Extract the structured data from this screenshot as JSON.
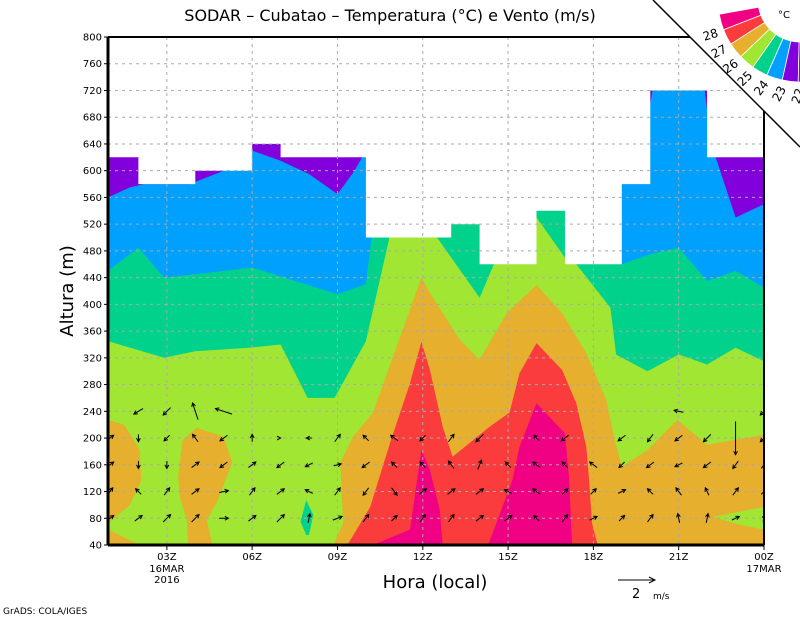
{
  "chart_data": {
    "type": "contour",
    "title": "SODAR – Cubatao – Temperatura (°C) e Vento (m/s)",
    "xlabel": "Hora (local)",
    "ylabel": "Altura (m)",
    "xlim_hours": [
      0.93,
      24
    ],
    "ylim": [
      40,
      800
    ],
    "yticks": [
      40,
      80,
      120,
      160,
      200,
      240,
      280,
      320,
      360,
      400,
      440,
      480,
      520,
      560,
      600,
      640,
      680,
      720,
      760,
      800
    ],
    "xticks": [
      {
        "h": 3,
        "label": "03Z",
        "sub1": "16MAR",
        "sub2": "2016"
      },
      {
        "h": 6,
        "label": "06Z"
      },
      {
        "h": 9,
        "label": "09Z"
      },
      {
        "h": 12,
        "label": "12Z"
      },
      {
        "h": 15,
        "label": "15Z"
      },
      {
        "h": 18,
        "label": "18Z"
      },
      {
        "h": 21,
        "label": "21Z"
      },
      {
        "h": 24,
        "label": "00Z",
        "sub1": "17MAR"
      }
    ],
    "grid": true,
    "colors": {
      "lt22": "#a000c8",
      "c22_23": "#8200dc",
      "c23_24": "#00a0ff",
      "c24_25": "#00d28c",
      "c25_26": "#a0e632",
      "c26_27": "#e6af2d",
      "c27_28": "#fa3c3c",
      "gt28": "#f00082"
    },
    "colorbar": {
      "unit": "°C",
      "levels": [
        "28",
        "27",
        "26",
        "25",
        "24",
        "23",
        "22"
      ],
      "colors": [
        "#f00082",
        "#fa3c3c",
        "#e6af2d",
        "#a0e632",
        "#00d28c",
        "#00a0ff",
        "#8200dc",
        "#a000c8"
      ]
    },
    "data_top": [
      [
        0.93,
        2,
        620
      ],
      [
        2,
        4,
        580
      ],
      [
        4,
        6,
        600
      ],
      [
        6,
        7,
        640
      ],
      [
        7,
        10,
        620
      ],
      [
        10,
        13,
        500
      ],
      [
        13,
        14,
        520
      ],
      [
        14,
        16,
        460
      ],
      [
        16,
        17,
        540
      ],
      [
        17,
        19,
        460
      ],
      [
        19,
        20,
        580
      ],
      [
        20,
        22,
        720
      ],
      [
        22,
        24,
        620
      ]
    ],
    "iso23_top": [
      [
        0.93,
        560
      ],
      [
        1.7,
        575
      ],
      [
        2.2,
        580
      ],
      [
        3.8,
        580
      ],
      [
        5.0,
        600
      ],
      [
        6.0,
        630
      ],
      [
        7.0,
        615
      ],
      [
        8.0,
        595
      ],
      [
        9.0,
        565
      ],
      [
        9.6,
        600
      ],
      [
        10.0,
        630
      ],
      [
        10.2,
        800
      ],
      [
        19.8,
        800
      ],
      [
        19.9,
        675
      ],
      [
        20.4,
        800
      ],
      [
        21.7,
        800
      ],
      [
        22.0,
        690
      ],
      [
        22.3,
        620
      ],
      [
        23.0,
        530
      ],
      [
        24,
        550
      ]
    ],
    "iso24_top": [
      [
        0.93,
        450
      ],
      [
        2.0,
        485
      ],
      [
        2.9,
        440
      ],
      [
        4.0,
        445
      ],
      [
        6.0,
        455
      ],
      [
        9.0,
        415
      ],
      [
        10.0,
        430
      ],
      [
        10.2,
        500
      ],
      [
        10.5,
        800
      ],
      [
        18.8,
        800
      ],
      [
        19.0,
        460
      ],
      [
        20.0,
        475
      ],
      [
        21.0,
        485
      ],
      [
        22.0,
        435
      ],
      [
        23.0,
        450
      ],
      [
        24,
        425
      ]
    ],
    "iso25_top": [
      [
        0.93,
        345
      ],
      [
        2.9,
        320
      ],
      [
        4.0,
        330
      ],
      [
        5.9,
        335
      ],
      [
        7.0,
        340
      ],
      [
        7.95,
        260
      ],
      [
        8.9,
        260
      ],
      [
        10.0,
        345
      ],
      [
        10.8,
        495
      ],
      [
        11.0,
        560
      ],
      [
        12.3,
        560
      ],
      [
        12.5,
        500
      ],
      [
        14.0,
        410
      ],
      [
        14.5,
        460
      ],
      [
        14.7,
        530
      ],
      [
        15.9,
        530
      ],
      [
        16.0,
        530
      ],
      [
        17.0,
        470
      ],
      [
        17.4,
        460
      ],
      [
        18.6,
        395
      ],
      [
        18.8,
        325
      ],
      [
        19.9,
        300
      ],
      [
        21.0,
        325
      ],
      [
        22.0,
        310
      ],
      [
        23.0,
        335
      ],
      [
        24,
        315
      ]
    ],
    "iso26_regions": [
      [
        [
          0.93,
          227
        ],
        [
          1.5,
          220
        ],
        [
          2.05,
          182
        ],
        [
          2.1,
          137
        ],
        [
          1.7,
          100
        ],
        [
          1.0,
          75
        ],
        [
          0.93,
          75
        ]
      ],
      [
        [
          0.93,
          63
        ],
        [
          2.05,
          40
        ],
        [
          0.93,
          40
        ]
      ],
      [
        [
          4.05,
          215
        ],
        [
          5.0,
          202
        ],
        [
          5.3,
          163
        ],
        [
          4.75,
          103
        ],
        [
          4.4,
          77
        ],
        [
          4.6,
          40
        ],
        [
          3.75,
          40
        ],
        [
          3.7,
          77
        ],
        [
          3.45,
          112
        ],
        [
          3.4,
          142
        ],
        [
          3.55,
          197
        ]
      ],
      [
        [
          8.85,
          40
        ],
        [
          9.2,
          73
        ],
        [
          9.1,
          163
        ],
        [
          9.55,
          202
        ],
        [
          10.25,
          238
        ],
        [
          11.2,
          351
        ],
        [
          11.95,
          440
        ],
        [
          12.25,
          417
        ],
        [
          13.3,
          347
        ],
        [
          14.0,
          317
        ],
        [
          14.95,
          387
        ],
        [
          16.0,
          429
        ],
        [
          16.9,
          387
        ],
        [
          17.75,
          327
        ],
        [
          18.45,
          257
        ],
        [
          18.75,
          197
        ],
        [
          19.0,
          157
        ],
        [
          19.9,
          182
        ],
        [
          20.95,
          227
        ],
        [
          22.0,
          190
        ],
        [
          24,
          205
        ],
        [
          24,
          40
        ]
      ]
    ],
    "iso26_holes": [
      [
        [
          22.2,
          82
        ],
        [
          24,
          97
        ],
        [
          24,
          63
        ],
        [
          23.15,
          70
        ]
      ]
    ],
    "iso27_regions": [
      [
        [
          9.35,
          40
        ],
        [
          10.15,
          97
        ],
        [
          10.85,
          193
        ],
        [
          11.55,
          282
        ],
        [
          11.95,
          344
        ],
        [
          12.25,
          302
        ],
        [
          12.7,
          217
        ],
        [
          13.05,
          172
        ],
        [
          14.35,
          217
        ],
        [
          15.05,
          238
        ],
        [
          15.4,
          297
        ],
        [
          16.0,
          342
        ],
        [
          16.9,
          302
        ],
        [
          17.4,
          252
        ],
        [
          17.75,
          187
        ],
        [
          17.85,
          137
        ],
        [
          17.95,
          73
        ],
        [
          18.15,
          40
        ]
      ]
    ],
    "iso28_regions": [
      [
        [
          10.25,
          40
        ],
        [
          11.55,
          63
        ],
        [
          11.7,
          107
        ],
        [
          11.95,
          182
        ],
        [
          12.25,
          152
        ],
        [
          12.6,
          92
        ],
        [
          12.7,
          40
        ]
      ],
      [
        [
          14.3,
          40
        ],
        [
          15.15,
          137
        ],
        [
          15.4,
          187
        ],
        [
          16.0,
          252
        ],
        [
          17.0,
          207
        ],
        [
          17.15,
          137
        ],
        [
          17.25,
          40
        ]
      ]
    ],
    "iso25_holes": [
      [
        [
          7.7,
          75
        ],
        [
          7.9,
          107
        ],
        [
          8.15,
          85
        ],
        [
          8.0,
          55
        ],
        [
          7.9,
          55
        ]
      ]
    ],
    "wind": {
      "units": "m/s",
      "hours": [
        1,
        2,
        3,
        4,
        5,
        6,
        7,
        8,
        9,
        10,
        11,
        12,
        13,
        14,
        15,
        16,
        17,
        18,
        19,
        20,
        21,
        22,
        23,
        24
      ],
      "levels": [
        80,
        120,
        160,
        200,
        240
      ],
      "u": [
        [
          0.4,
          0.4,
          0.4,
          0.4,
          0.5,
          0.4,
          0.4,
          0.1,
          0.5,
          0.3,
          0.3,
          0.3,
          0.3,
          0.4,
          0.4,
          -0.3,
          0.3,
          0.4,
          0.3,
          0.3,
          -0.1,
          0.1,
          0.4,
          0.1
        ],
        [
          0.3,
          -0.3,
          0.3,
          0.4,
          0.5,
          0.3,
          0.4,
          -0.4,
          0.3,
          -0.3,
          0.3,
          0.4,
          0.4,
          0.4,
          -0.4,
          -0.4,
          0.3,
          0.3,
          0.4,
          -0.3,
          -0.3,
          -0.2,
          0.3,
          0.3
        ],
        [
          0.4,
          0.0,
          0.0,
          0.4,
          -0.4,
          0.4,
          -0.4,
          -0.4,
          0.4,
          -0.4,
          -0.3,
          -0.3,
          -0.3,
          0.2,
          -0.3,
          -0.4,
          -0.3,
          -0.4,
          -0.3,
          -0.4,
          -0.4,
          -0.4,
          -0.3,
          0.3
        ],
        [
          0.4,
          0.0,
          -0.3,
          -0.3,
          -0.4,
          0.0,
          0.0,
          -0.3,
          0.3,
          -0.3,
          -0.4,
          -0.3,
          0.3,
          -0.4,
          null,
          -0.3,
          -0.4,
          null,
          -0.4,
          -0.3,
          -0.4,
          -0.4,
          0.0,
          -0.4
        ],
        [
          null,
          -0.5,
          -0.4,
          -0.3,
          -0.9,
          null,
          null,
          null,
          null,
          null,
          null,
          null,
          null,
          null,
          null,
          null,
          null,
          null,
          null,
          null,
          -0.5,
          null,
          null,
          -0.4
        ]
      ],
      "v": [
        [
          0.3,
          0.3,
          0.4,
          0.4,
          0.0,
          0.3,
          0.4,
          0.5,
          0.2,
          0.4,
          0.3,
          0.4,
          0.4,
          0.3,
          0.3,
          0.3,
          0.4,
          0.2,
          0.3,
          0.4,
          0.5,
          0.5,
          0.2,
          0.4
        ],
        [
          0.4,
          0.3,
          0.4,
          0.3,
          0.1,
          0.4,
          0.3,
          0.2,
          0.4,
          -0.4,
          -0.4,
          0.3,
          0.3,
          0.3,
          0.2,
          0.3,
          0.3,
          0.3,
          0.2,
          0.3,
          0.4,
          0.4,
          0.4,
          0.3
        ],
        [
          0.3,
          -0.4,
          -0.4,
          0.3,
          -0.3,
          0.3,
          -0.3,
          -0.2,
          0.1,
          -0.3,
          0.3,
          0.3,
          0.4,
          0.5,
          0.3,
          0.3,
          0.3,
          0.3,
          -0.3,
          -0.3,
          -0.2,
          -0.3,
          -0.4,
          0.4
        ],
        [
          0.3,
          -0.4,
          -0.3,
          0.4,
          -0.3,
          0.4,
          0.0,
          0.0,
          0.4,
          0.3,
          0.3,
          -0.3,
          0.4,
          -0.4,
          null,
          0.3,
          -0.3,
          null,
          -0.3,
          -0.4,
          -0.3,
          -0.4,
          -1.8,
          -0.4
        ],
        [
          null,
          -0.3,
          -0.4,
          0.9,
          0.3,
          null,
          null,
          null,
          null,
          null,
          null,
          null,
          null,
          null,
          null,
          null,
          null,
          null,
          null,
          null,
          0.1,
          null,
          null,
          -0.4
        ]
      ],
      "reference": {
        "value": 2,
        "label": "2",
        "unit": "m/s"
      }
    }
  },
  "footer": "GrADS: COLA/IGES"
}
